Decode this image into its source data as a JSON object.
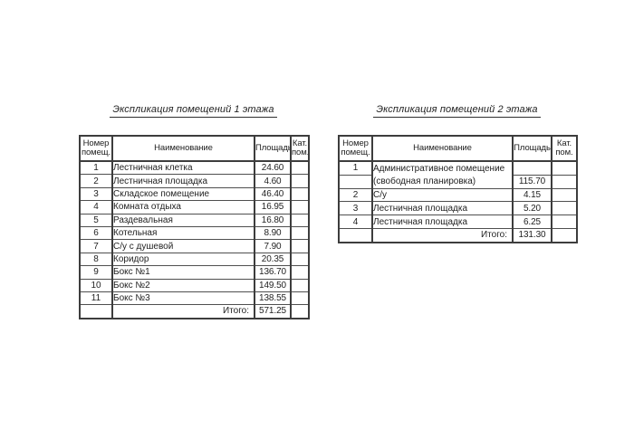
{
  "colors": {
    "background": "#ffffff",
    "text": "#1f1f1f",
    "line_thick": "#3d3d3d",
    "line_thin": "#4f4f4f"
  },
  "tables": [
    {
      "title": "Экспликация помещений 1 этажа",
      "headers": {
        "number": "Номер помещ.",
        "name": "Наименование",
        "area": "Площадь",
        "category": "Кат. пом."
      },
      "rows": [
        {
          "number": "1",
          "name": "Лестничная клетка",
          "area": "24.60",
          "category": ""
        },
        {
          "number": "2",
          "name": "Лестничная площадка",
          "area": "4.60",
          "category": ""
        },
        {
          "number": "3",
          "name": "Складское помещение",
          "area": "46.40",
          "category": ""
        },
        {
          "number": "4",
          "name": "Комната отдыха",
          "area": "16.95",
          "category": ""
        },
        {
          "number": "5",
          "name": "Раздевальная",
          "area": "16.80",
          "category": ""
        },
        {
          "number": "6",
          "name": "Котельная",
          "area": "8.90",
          "category": ""
        },
        {
          "number": "7",
          "name": "С/у с душевой",
          "area": "7.90",
          "category": ""
        },
        {
          "number": "8",
          "name": "Коридор",
          "area": "20.35",
          "category": ""
        },
        {
          "number": "9",
          "name": "Бокс №1",
          "area": "136.70",
          "category": ""
        },
        {
          "number": "10",
          "name": "Бокс №2",
          "area": "149.50",
          "category": ""
        },
        {
          "number": "11",
          "name": "Бокс №3",
          "area": "138.55",
          "category": ""
        }
      ],
      "total": {
        "label": "Итого:",
        "value": "571.25"
      }
    },
    {
      "title": "Экспликация помещений 2 этажа",
      "headers": {
        "number": "Номер помещ.",
        "name": "Наименование",
        "area": "Площадь",
        "category": "Кат. пом."
      },
      "rows": [
        {
          "number": "1",
          "name": "Административное помещение",
          "area": "",
          "category": "",
          "merge_name_below": true
        },
        {
          "number": "",
          "name": "(свободная планировка)",
          "area": "115.70",
          "category": "",
          "after_merged": true
        },
        {
          "number": "2",
          "name": "С/у",
          "area": "4.15",
          "category": ""
        },
        {
          "number": "3",
          "name": "Лестничная площадка",
          "area": "5.20",
          "category": ""
        },
        {
          "number": "4",
          "name": "Лестничная площадка",
          "area": "6.25",
          "category": ""
        }
      ],
      "total": {
        "label": "Итого:",
        "value": "131.30"
      }
    }
  ]
}
